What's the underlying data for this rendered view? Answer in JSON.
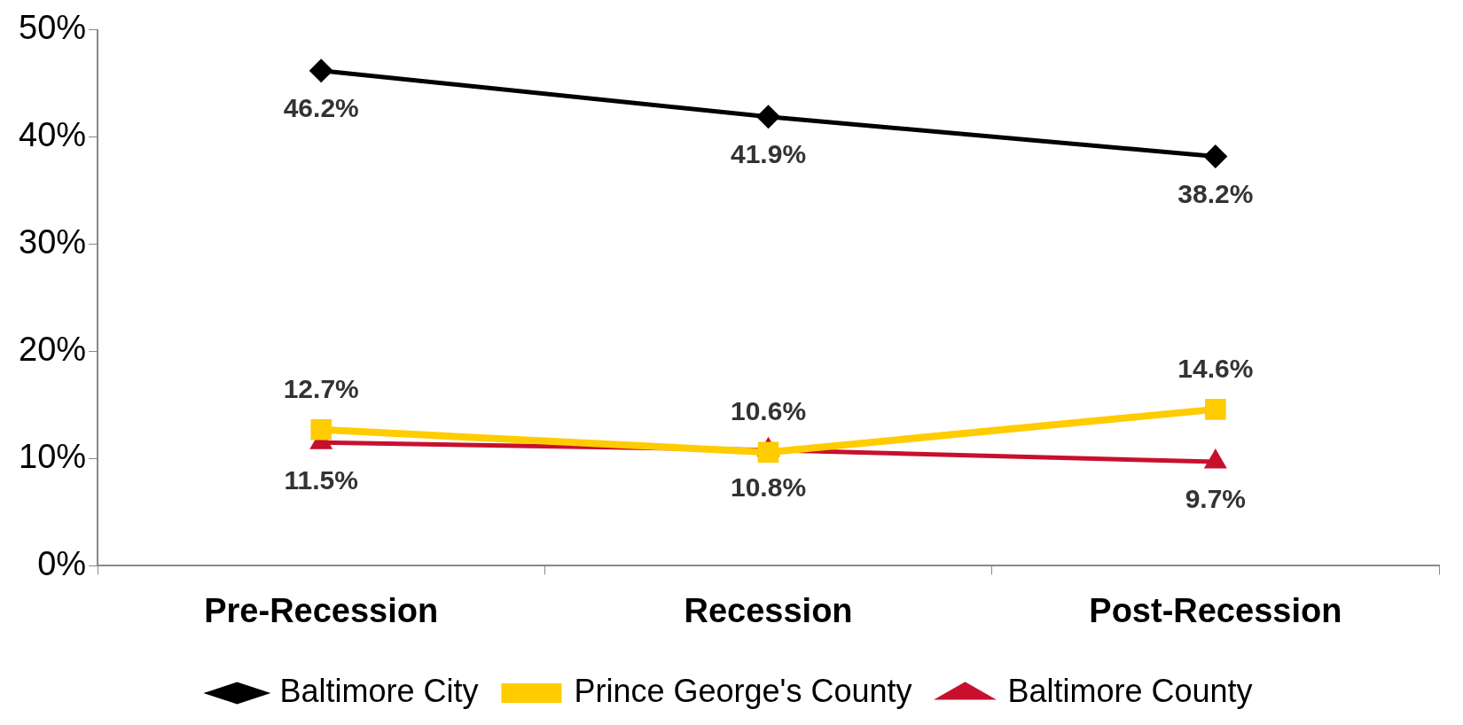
{
  "chart_data": {
    "type": "line",
    "categories": [
      "Pre-Recession",
      "Recession",
      "Post-Recession"
    ],
    "series": [
      {
        "name": "Baltimore City",
        "color": "#000000",
        "marker": "diamond",
        "values": [
          46.2,
          41.9,
          38.2
        ],
        "value_labels": [
          "46.2%",
          "41.9%",
          "38.2%"
        ]
      },
      {
        "name": "Prince George's County",
        "color": "#ffcc00",
        "marker": "square",
        "values": [
          12.7,
          10.6,
          14.6
        ],
        "value_labels": [
          "12.7%",
          "10.6%",
          "14.6%"
        ]
      },
      {
        "name": "Baltimore County",
        "color": "#c8102e",
        "marker": "triangle",
        "values": [
          11.5,
          10.8,
          9.7
        ],
        "value_labels": [
          "11.5%",
          "10.8%",
          "9.7%"
        ]
      }
    ],
    "ylim": [
      0,
      50
    ],
    "yticks": [
      {
        "value": 0,
        "label": "0%"
      },
      {
        "value": 10,
        "label": "10%"
      },
      {
        "value": 20,
        "label": "20%"
      },
      {
        "value": 30,
        "label": "30%"
      },
      {
        "value": 40,
        "label": "40%"
      },
      {
        "value": 50,
        "label": "50%"
      }
    ],
    "grid": false,
    "legend": "bottom"
  }
}
